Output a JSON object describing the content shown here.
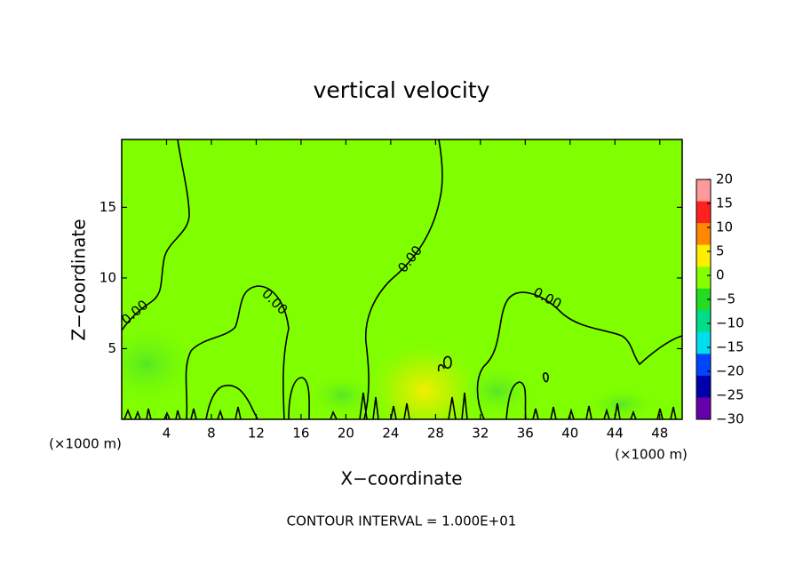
{
  "chart_data": {
    "type": "contour",
    "title": "vertical velocity",
    "x_label": "X−coordinate",
    "y_label": "Z−coordinate",
    "x_unit": "(×1000 m)",
    "footer": "CONTOUR INTERVAL = 1.000E+01",
    "xlim": [
      0,
      50
    ],
    "ylim": [
      0,
      19.8
    ],
    "xticks": [
      4,
      8,
      12,
      16,
      20,
      24,
      28,
      32,
      36,
      40,
      44,
      48
    ],
    "yticks": [
      5,
      10,
      15
    ],
    "field_color": "#80ff00",
    "contour_labels": [
      "0.00",
      "0.00",
      "0.00",
      "0.00"
    ],
    "colorbar": {
      "lim": [
        -30,
        20
      ],
      "ticks": [
        20,
        15,
        10,
        5,
        0,
        {
          "value": -5,
          "label": "−5"
        },
        {
          "value": -10,
          "label": "−10"
        },
        {
          "value": -15,
          "label": "−15"
        },
        {
          "value": -20,
          "label": "−20"
        },
        {
          "value": -25,
          "label": "−25"
        },
        {
          "value": -30,
          "label": "−30"
        }
      ],
      "colors": [
        "#ff9a9a",
        "#ff2020",
        "#ff8800",
        "#ffee00",
        "#88ff00",
        "#22dd22",
        "#00dd88",
        "#00ddee",
        "#0044ff",
        "#0000aa",
        "#6600aa"
      ]
    }
  }
}
